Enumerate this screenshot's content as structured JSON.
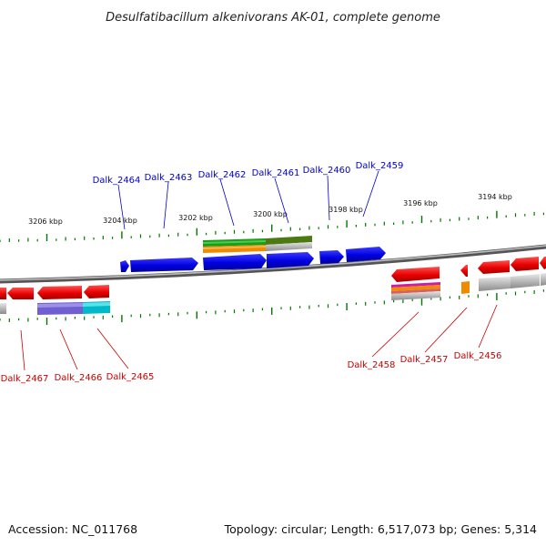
{
  "header": {
    "title": "Desulfatibacillum alkenivorans AK-01, complete genome"
  },
  "footer": {
    "accession": "Accession: NC_011768",
    "summary": "Topology: circular; Length: 6,517,073 bp; Genes: 5,314"
  },
  "colors": {
    "forward_label": "#0000cc",
    "reverse_label": "#cc0000",
    "ticks": "#007700",
    "backbone": "#888888"
  },
  "scale": {
    "labels": [
      {
        "id": "3206",
        "text": "3206 kbp"
      },
      {
        "id": "3204",
        "text": "3204 kbp"
      },
      {
        "id": "3202",
        "text": "3202 kbp"
      },
      {
        "id": "3200",
        "text": "3200 kbp"
      },
      {
        "id": "3198",
        "text": "3198 kbp"
      },
      {
        "id": "3196",
        "text": "3196 kbp"
      },
      {
        "id": "3194",
        "text": "3194 kbp"
      }
    ]
  },
  "genes": {
    "forward": [
      {
        "id": "2464",
        "label": "Dalk_2464"
      },
      {
        "id": "2463",
        "label": "Dalk_2463"
      },
      {
        "id": "2462",
        "label": "Dalk_2462"
      },
      {
        "id": "2461",
        "label": "Dalk_2461"
      },
      {
        "id": "2460",
        "label": "Dalk_2460"
      },
      {
        "id": "2459",
        "label": "Dalk_2459"
      }
    ],
    "reverse": [
      {
        "id": "2467",
        "label": "Dalk_2467"
      },
      {
        "id": "2466",
        "label": "Dalk_2466"
      },
      {
        "id": "2465",
        "label": "Dalk_2465"
      },
      {
        "id": "2458",
        "label": "Dalk_2458"
      },
      {
        "id": "2457",
        "label": "Dalk_2457"
      },
      {
        "id": "2456",
        "label": "Dalk_2456"
      }
    ]
  }
}
